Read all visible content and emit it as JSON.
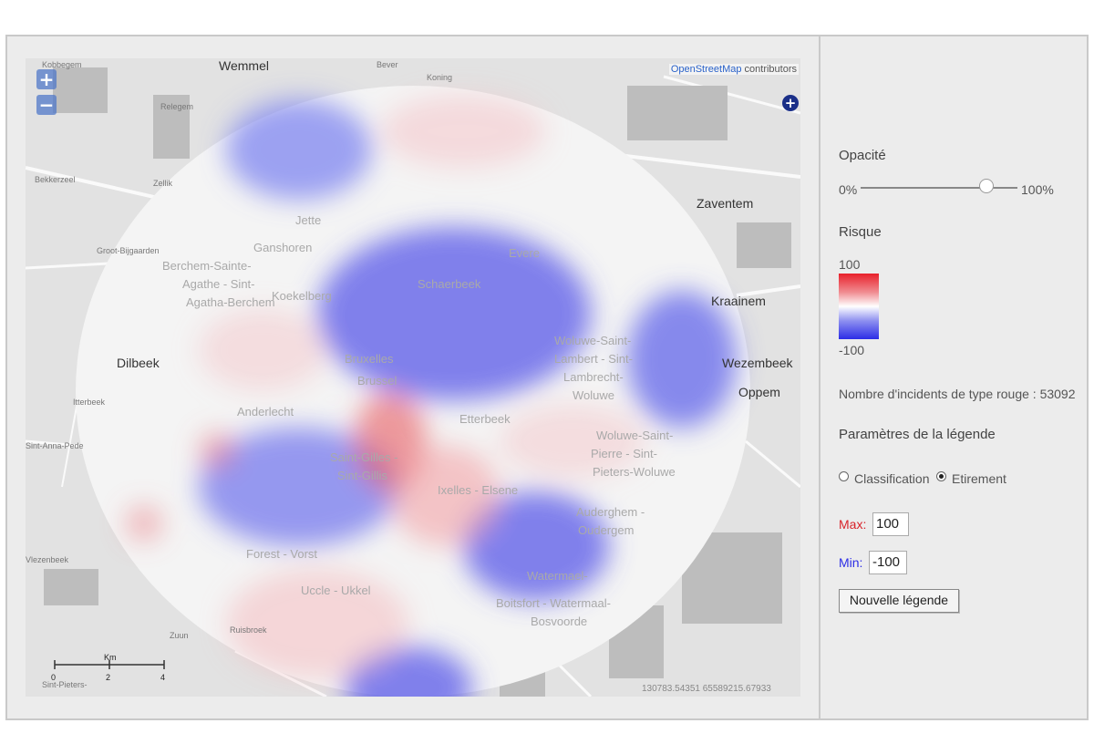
{
  "map": {
    "attribution_link": "OpenStreetMap",
    "attribution_rest": " contributors",
    "zoom_in": "+",
    "zoom_out": "−",
    "layer_switcher": "+",
    "scale_unit": "Km",
    "scale_ticks": [
      "0",
      "2",
      "4"
    ],
    "coordinates": "130783.54351 65589215.67933",
    "place_labels": [
      {
        "text": "Wemmel",
        "style": "dark"
      },
      {
        "text": "Kobbegem",
        "style": "small"
      },
      {
        "text": "Bever",
        "style": "small"
      },
      {
        "text": "Koning",
        "style": "small"
      },
      {
        "text": "Relegem",
        "style": "small"
      },
      {
        "text": "Bekkerzeel",
        "style": "small"
      },
      {
        "text": "Zellik",
        "style": "small"
      },
      {
        "text": "Groot-Bijgaarden",
        "style": "small"
      },
      {
        "text": "Jette",
        "style": "faint"
      },
      {
        "text": "Ganshoren",
        "style": "faint"
      },
      {
        "text": "Berchem-Sainte-",
        "style": "faint"
      },
      {
        "text": "Agathe - Sint-",
        "style": "faint"
      },
      {
        "text": "Agatha-Berchem",
        "style": "faint"
      },
      {
        "text": "Koekelberg",
        "style": "faint"
      },
      {
        "text": "Schaerbeek",
        "style": "faint"
      },
      {
        "text": "Evere",
        "style": "faint"
      },
      {
        "text": "Zaventem",
        "style": "dark"
      },
      {
        "text": "Kraainem",
        "style": "dark"
      },
      {
        "text": "Dilbeek",
        "style": "dark"
      },
      {
        "text": "Itterbeek",
        "style": "small"
      },
      {
        "text": "Bruxelles",
        "style": "faint"
      },
      {
        "text": "Brussel",
        "style": "faint"
      },
      {
        "text": "Woluwe-Saint-",
        "style": "faint"
      },
      {
        "text": "Lambert - Sint-",
        "style": "faint"
      },
      {
        "text": "Lambrecht-",
        "style": "faint"
      },
      {
        "text": "Woluwe",
        "style": "faint"
      },
      {
        "text": "Wezembeek",
        "style": "dark"
      },
      {
        "text": "Oppem",
        "style": "dark"
      },
      {
        "text": "Anderlecht",
        "style": "faint"
      },
      {
        "text": "Etterbeek",
        "style": "faint"
      },
      {
        "text": "Sint-Anna-Pede",
        "style": "small"
      },
      {
        "text": "Saint-Gilles -",
        "style": "faint"
      },
      {
        "text": "Sint-Gillis",
        "style": "faint"
      },
      {
        "text": "Ixelles - Elsene",
        "style": "faint"
      },
      {
        "text": "Woluwe-Saint-",
        "style": "faint"
      },
      {
        "text": "Pierre - Sint-",
        "style": "faint"
      },
      {
        "text": "Pieters-Woluwe",
        "style": "faint"
      },
      {
        "text": "Auderghem -",
        "style": "faint"
      },
      {
        "text": "Oudergem",
        "style": "faint"
      },
      {
        "text": "Vlezenbeek",
        "style": "small"
      },
      {
        "text": "Forest - Vorst",
        "style": "faint"
      },
      {
        "text": "Uccle - Ukkel",
        "style": "faint"
      },
      {
        "text": "Watermael-",
        "style": "faint"
      },
      {
        "text": "Boitsfort - Watermaal-",
        "style": "faint"
      },
      {
        "text": "Bosvoorde",
        "style": "faint"
      },
      {
        "text": "Zuun",
        "style": "small"
      },
      {
        "text": "Ruisbroek",
        "style": "small"
      },
      {
        "text": "Sint-Pieters-",
        "style": "small"
      }
    ]
  },
  "panel": {
    "opacity_title": "Opacité",
    "opacity_min": "0%",
    "opacity_max": "100%",
    "opacity_value": 0.8,
    "risk_title": "Risque",
    "risk_max": "100",
    "risk_min": "-100",
    "gradient_colors": [
      "#e8202a",
      "#ffffff",
      "#2c2de6"
    ],
    "incidents_text": "Nombre d'incidents de type rouge : 53092",
    "legend_params_title": "Paramètres de la légende",
    "radio_classification": "Classification",
    "radio_stretch": "Etirement",
    "selected_mode": "Etirement",
    "max_label": "Max:",
    "max_value": "100",
    "min_label": "Min:",
    "min_value": "-100",
    "max_color": "#d8232a",
    "min_color": "#2c2de6",
    "new_legend_button": "Nouvelle légende"
  }
}
